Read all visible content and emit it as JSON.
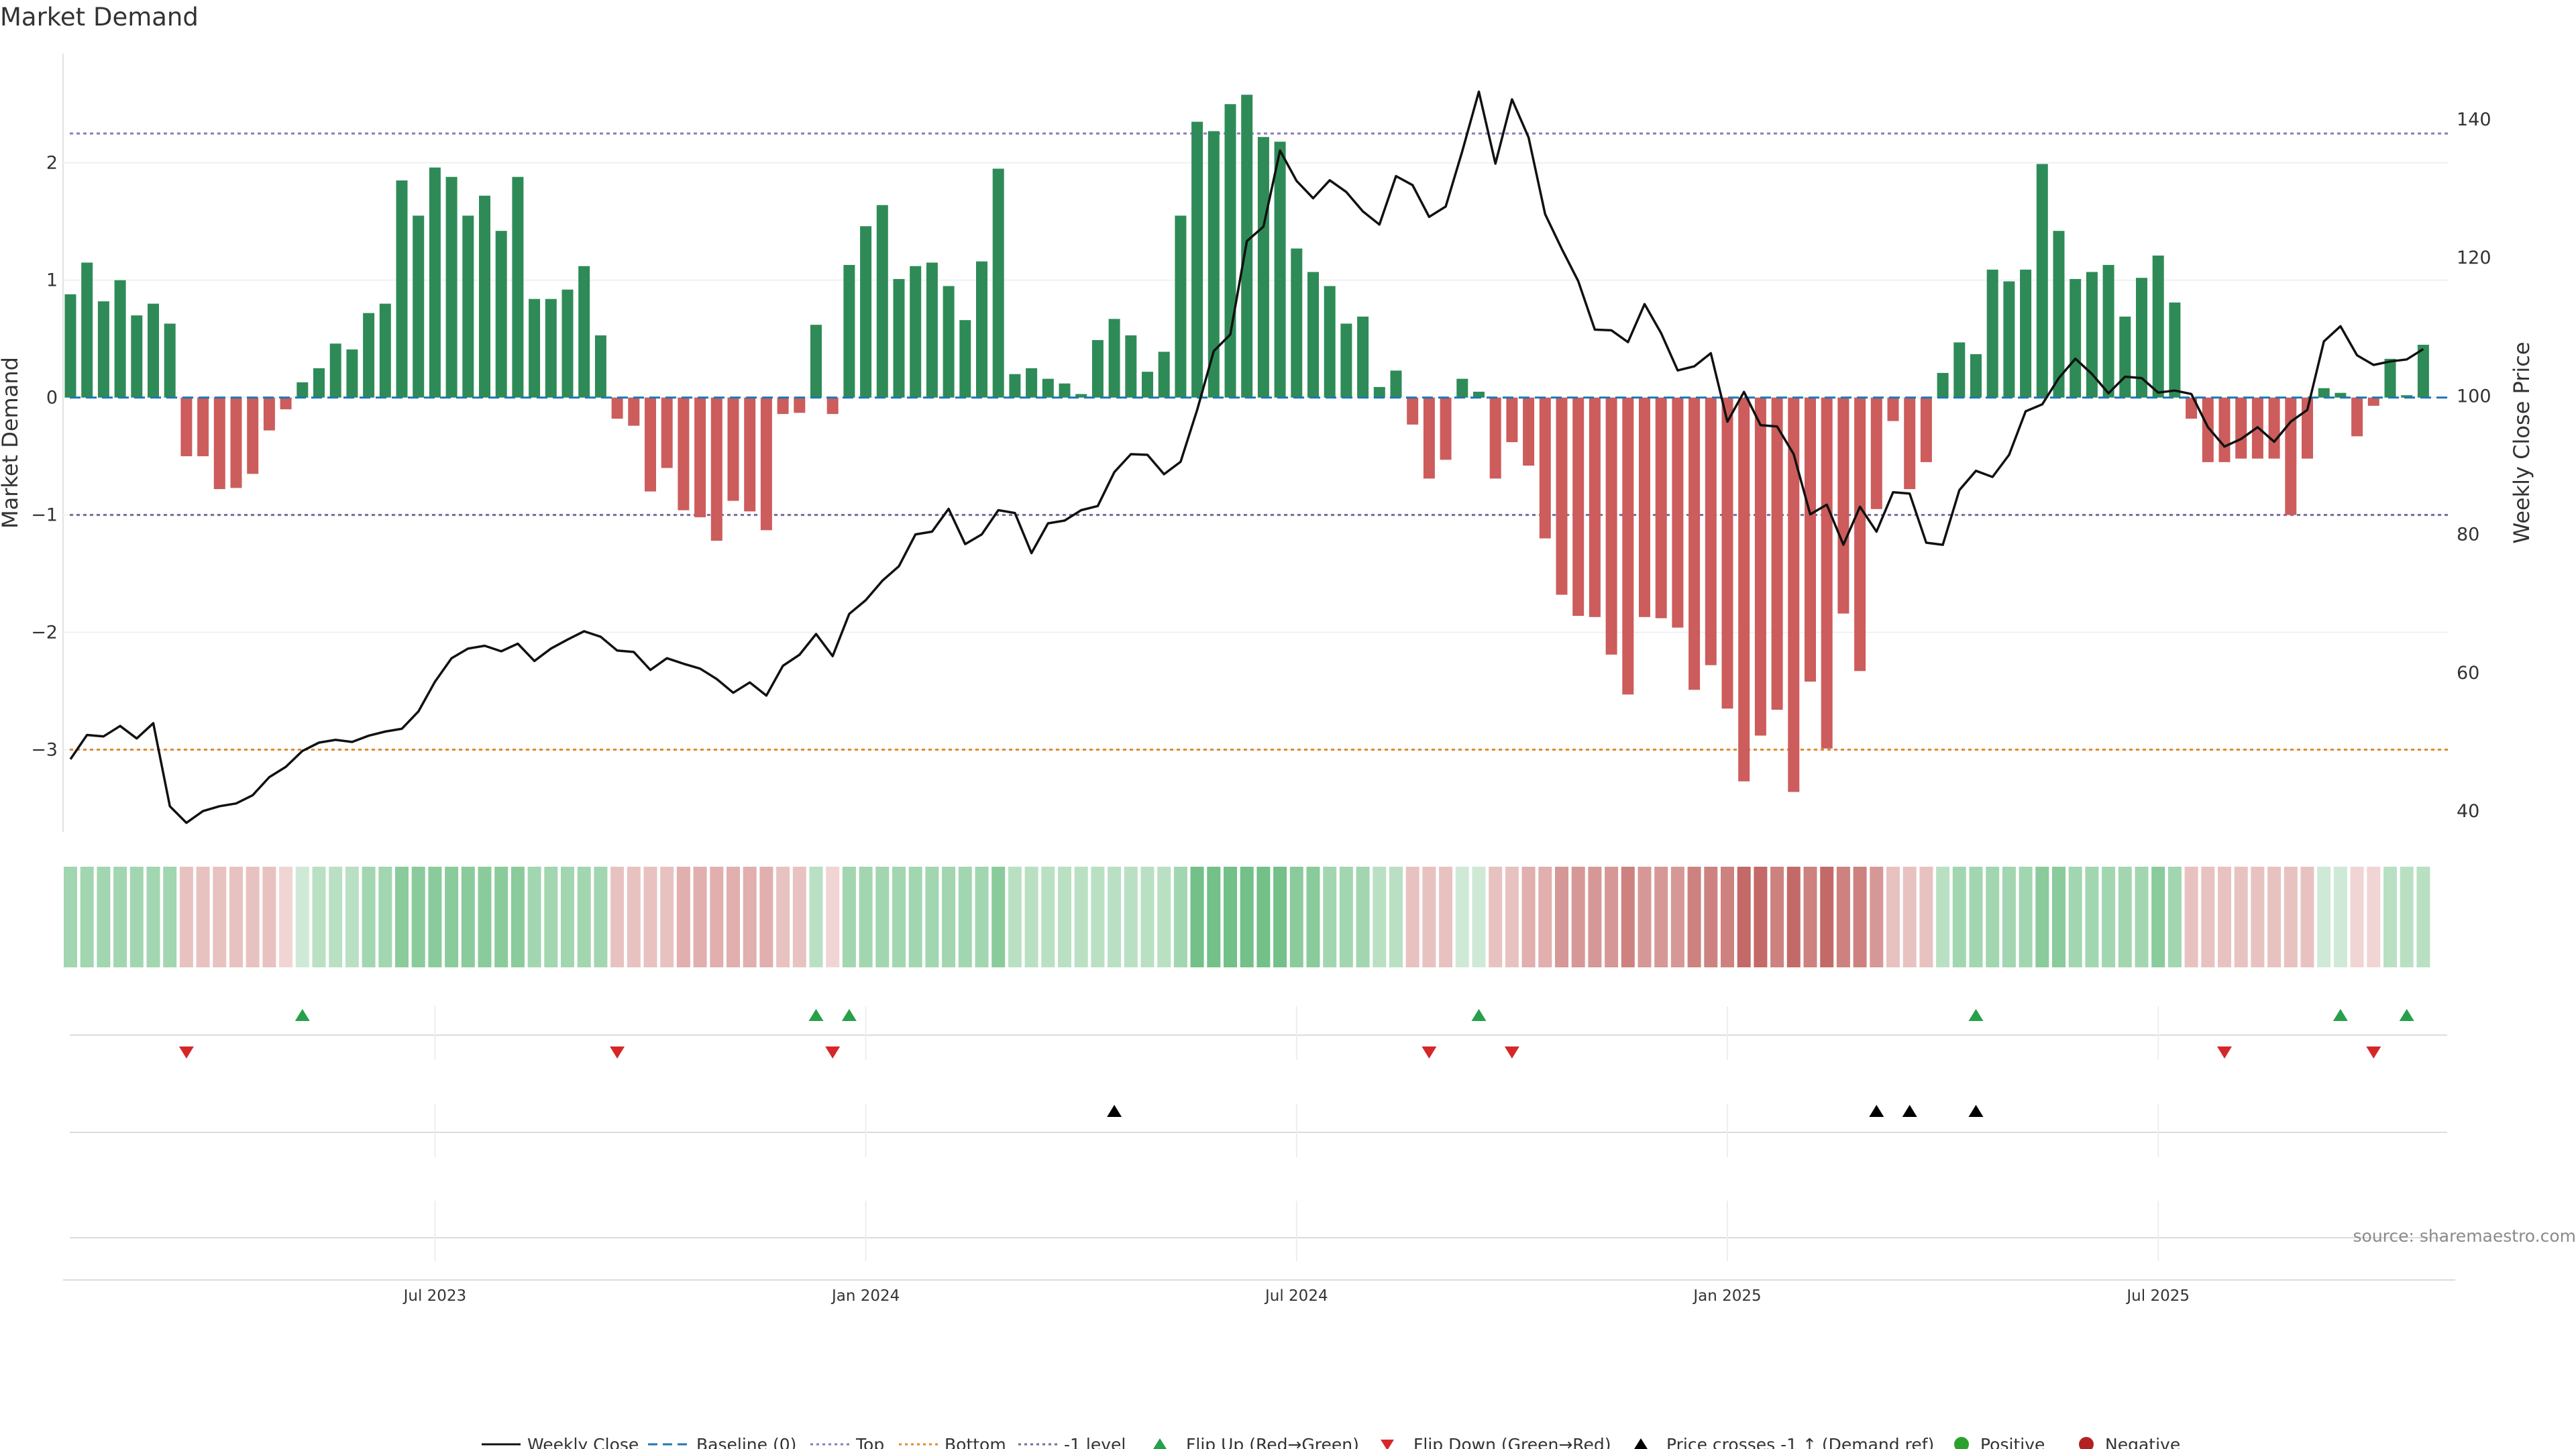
{
  "chart_data": {
    "type": "bar",
    "title": "Market Demand",
    "ylabel_left": "Market Demand",
    "ylabel_right": "Weekly Close Price",
    "ylim_left": [
      -3.7,
      2.93
    ],
    "ylim_right": [
      37,
      149.5
    ],
    "yticks_left": [
      2,
      1,
      0,
      -1,
      -2,
      -3
    ],
    "yticks_left_labels": [
      "2",
      "1",
      "0",
      "−1",
      "−2",
      "−3"
    ],
    "yticks_right": [
      140,
      120,
      100,
      80,
      60,
      40
    ],
    "yticks_right_labels": [
      "140",
      "120",
      "100",
      "80",
      "60",
      "40"
    ],
    "reference_lines": {
      "top": 2.25,
      "bottom": -3.0,
      "minus_one": -1.0,
      "baseline": 0
    },
    "xaxis_ticks": [
      {
        "index": 22,
        "label": "Jul 2023"
      },
      {
        "index": 48,
        "label": "Jan 2024"
      },
      {
        "index": 74,
        "label": "Jul 2024"
      },
      {
        "index": 100,
        "label": "Jan 2025"
      },
      {
        "index": 126,
        "label": "Jul 2025"
      }
    ],
    "demand": [
      0.88,
      1.15,
      0.82,
      1.0,
      0.7,
      0.8,
      0.63,
      -0.5,
      -0.5,
      -0.78,
      -0.77,
      -0.65,
      -0.28,
      -0.1,
      0.13,
      0.25,
      0.46,
      0.41,
      0.72,
      0.8,
      1.85,
      1.55,
      1.96,
      1.88,
      1.55,
      1.72,
      1.42,
      1.88,
      0.84,
      0.84,
      0.92,
      1.12,
      0.53,
      -0.18,
      -0.24,
      -0.8,
      -0.6,
      -0.96,
      -1.02,
      -1.22,
      -0.88,
      -0.97,
      -1.13,
      -0.14,
      -0.13,
      0.62,
      -0.14,
      1.13,
      1.46,
      1.64,
      1.01,
      1.12,
      1.15,
      0.95,
      0.66,
      1.16,
      1.95,
      0.2,
      0.25,
      0.16,
      0.12,
      0.03,
      0.49,
      0.67,
      0.53,
      0.22,
      0.39,
      1.55,
      2.35,
      2.27,
      2.5,
      2.58,
      2.22,
      2.18,
      1.27,
      1.07,
      0.95,
      0.63,
      0.69,
      0.09,
      0.23,
      -0.23,
      -0.69,
      -0.53,
      0.16,
      0.05,
      -0.69,
      -0.38,
      -0.58,
      -1.2,
      -1.68,
      -1.86,
      -1.87,
      -2.19,
      -2.53,
      -1.87,
      -1.88,
      -1.96,
      -2.49,
      -2.28,
      -2.65,
      -3.27,
      -2.88,
      -2.66,
      -3.36,
      -2.42,
      -2.99,
      -1.84,
      -2.33,
      -0.95,
      -0.2,
      -0.78,
      -0.55,
      0.21,
      0.47,
      0.37,
      1.09,
      0.99,
      1.09,
      1.99,
      1.42,
      1.01,
      1.07,
      1.13,
      0.69,
      1.02,
      1.21,
      0.81,
      -0.18,
      -0.55,
      -0.55,
      -0.52,
      -0.52,
      -0.52,
      -1.0,
      -0.52,
      0.08,
      0.04,
      -0.33,
      -0.07,
      0.33,
      0.02,
      0.45
    ],
    "weekly_close": [
      47.5,
      51.0,
      50.8,
      52.3,
      50.5,
      52.7,
      40.7,
      38.3,
      40.0,
      40.7,
      41.1,
      42.3,
      44.9,
      46.4,
      48.7,
      49.9,
      50.3,
      50.0,
      50.9,
      51.5,
      51.9,
      54.4,
      58.7,
      62.1,
      63.5,
      63.9,
      63.1,
      64.2,
      61.7,
      63.5,
      64.8,
      66.0,
      65.2,
      63.2,
      63.0,
      60.4,
      62.1,
      61.3,
      60.6,
      59.1,
      57.1,
      58.6,
      56.7,
      61.0,
      62.6,
      65.6,
      62.4,
      68.5,
      70.5,
      73.3,
      75.4,
      80.0,
      80.4,
      83.7,
      78.6,
      80.0,
      83.5,
      83.1,
      77.3,
      81.6,
      82.0,
      83.5,
      84.1,
      89.0,
      91.6,
      91.5,
      88.7,
      90.5,
      98.0,
      106.5,
      108.9,
      122.4,
      124.5,
      135.5,
      131.1,
      128.6,
      131.2,
      129.5,
      126.7,
      124.8,
      131.8,
      130.5,
      125.9,
      127.4,
      135.4,
      144.0,
      133.6,
      142.9,
      137.4,
      126.3,
      121.3,
      116.6,
      109.6,
      109.5,
      107.8,
      113.3,
      109.1,
      103.7,
      104.3,
      106.2,
      96.3,
      100.6,
      95.8,
      95.6,
      91.6,
      82.9,
      84.3,
      78.5,
      84.0,
      80.4,
      86.1,
      85.9,
      78.8,
      78.5,
      86.4,
      89.2,
      88.3,
      91.5,
      97.8,
      98.8,
      102.6,
      105.4,
      103.2,
      100.4,
      102.8,
      102.6,
      100.5,
      100.8,
      100.3,
      95.5,
      92.7,
      93.8,
      95.5,
      93.4,
      96.3,
      98.0,
      107.9,
      110.1,
      105.9,
      104.5,
      105.0,
      105.3,
      106.8
    ],
    "strip_levels": [
      3,
      3,
      3,
      3,
      3,
      3,
      3,
      -2,
      -2,
      -2,
      -2,
      -2,
      -2,
      -1,
      1,
      2,
      2,
      2,
      3,
      3,
      4,
      4,
      4,
      4,
      4,
      4,
      4,
      4,
      3,
      3,
      3,
      3,
      3,
      -2,
      -2,
      -2,
      -2,
      -3,
      -3,
      -3,
      -3,
      -3,
      -3,
      -2,
      -2,
      2,
      -1,
      3,
      3,
      3,
      3,
      3,
      3,
      3,
      3,
      3,
      4,
      2,
      2,
      2,
      2,
      2,
      2,
      2,
      2,
      2,
      2,
      3,
      5,
      5,
      5,
      5,
      5,
      5,
      4,
      4,
      3,
      3,
      3,
      2,
      2,
      -2,
      -2,
      -2,
      1,
      1,
      -2,
      -2,
      -3,
      -3,
      -4,
      -4,
      -4,
      -4,
      -5,
      -4,
      -4,
      -4,
      -5,
      -5,
      -5,
      -6,
      -6,
      -5,
      -6,
      -5,
      -6,
      -5,
      -5,
      -4,
      -2,
      -2,
      -2,
      2,
      3,
      3,
      3,
      3,
      3,
      4,
      4,
      3,
      3,
      3,
      3,
      3,
      4,
      3,
      -2,
      -2,
      -2,
      -2,
      -2,
      -2,
      -2,
      -2,
      1,
      1,
      -1,
      -1,
      2,
      2,
      2
    ],
    "flip_up_indices": [
      14,
      45,
      47,
      85,
      115,
      137,
      141
    ],
    "flip_down_indices": [
      7,
      33,
      46,
      82,
      87,
      130,
      139
    ],
    "price_cross_indices": [
      63,
      109,
      111,
      115
    ],
    "legend": [
      "Weekly Close",
      "Baseline (0)",
      "Top",
      "Bottom",
      "-1 level",
      "Flip Up (Red→Green)",
      "Flip Down (Green→Red)",
      "Price crosses -1 ↑ (Demand ref)",
      "Positive",
      "Negative"
    ],
    "source": "source: sharemaestro.com"
  },
  "colors": {
    "positive_bar": "#2e8b57",
    "negative_bar": "#cd5c5c",
    "line": "#111111",
    "top_line": "#8a7bb8",
    "bottom_line": "#e08a2c",
    "minus_one_line": "#7a6a9a",
    "baseline": "#1f77b4",
    "flip_up": "#27a04a",
    "flip_down": "#d62728",
    "cross": "#000000",
    "positive_dot": "#2ca02c",
    "negative_dot": "#b22222"
  }
}
